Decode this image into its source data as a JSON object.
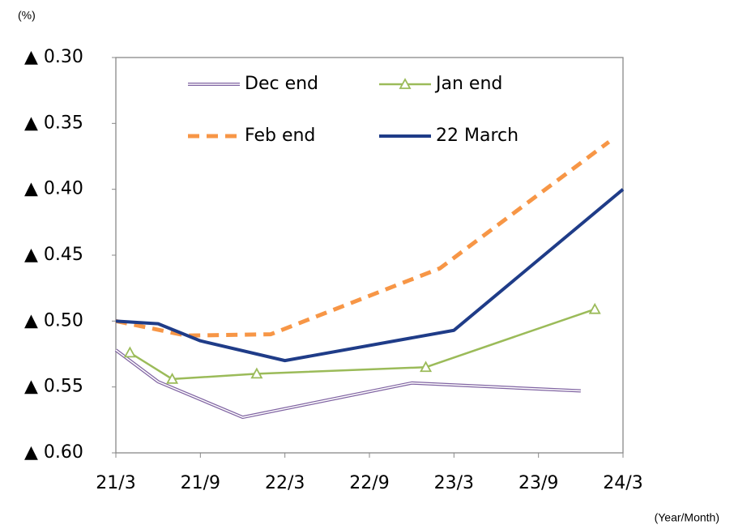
{
  "chart_data": {
    "type": "line",
    "y_label": "(%)",
    "x_label": "(Year/Month)",
    "xlim": [
      "21/3",
      "24/3"
    ],
    "xticks": [
      "21/3",
      "21/9",
      "22/3",
      "22/9",
      "23/3",
      "23/9",
      "24/3"
    ],
    "ylim": [
      -0.6,
      -0.3
    ],
    "yticks": [
      {
        "value": -0.3,
        "label": "▲ 0.30"
      },
      {
        "value": -0.35,
        "label": "▲ 0.35"
      },
      {
        "value": -0.4,
        "label": "▲ 0.40"
      },
      {
        "value": -0.45,
        "label": "▲ 0.45"
      },
      {
        "value": -0.5,
        "label": "▲ 0.50"
      },
      {
        "value": -0.55,
        "label": "▲ 0.55"
      },
      {
        "value": -0.6,
        "label": "▲ 0.60"
      }
    ],
    "series": [
      {
        "name": "Dec end",
        "color": "#8064a2",
        "style": "double",
        "x": [
          "21/3",
          "21/6",
          "21/12",
          "22/12",
          "23/12"
        ],
        "values": [
          -0.522,
          -0.546,
          -0.573,
          -0.547,
          -0.553
        ]
      },
      {
        "name": "Jan end",
        "color": "#9bbb59",
        "style": "triangle",
        "x": [
          "21/4",
          "21/7",
          "22/1",
          "23/1",
          "24/1"
        ],
        "values": [
          -0.524,
          -0.544,
          -0.54,
          -0.535,
          -0.491
        ]
      },
      {
        "name": "Feb end",
        "color": "#f79646",
        "style": "dashed",
        "x": [
          "21/3",
          "21/8",
          "22/2",
          "23/2",
          "24/2"
        ],
        "values": [
          -0.5,
          -0.511,
          -0.51,
          -0.46,
          -0.364
        ]
      },
      {
        "name": "22 March",
        "color": "#1f3c88",
        "style": "thick",
        "x": [
          "21/3",
          "21/6",
          "21/9",
          "22/3",
          "23/3",
          "24/3"
        ],
        "values": [
          -0.5,
          -0.502,
          -0.515,
          -0.53,
          -0.507,
          -0.4
        ]
      }
    ]
  }
}
